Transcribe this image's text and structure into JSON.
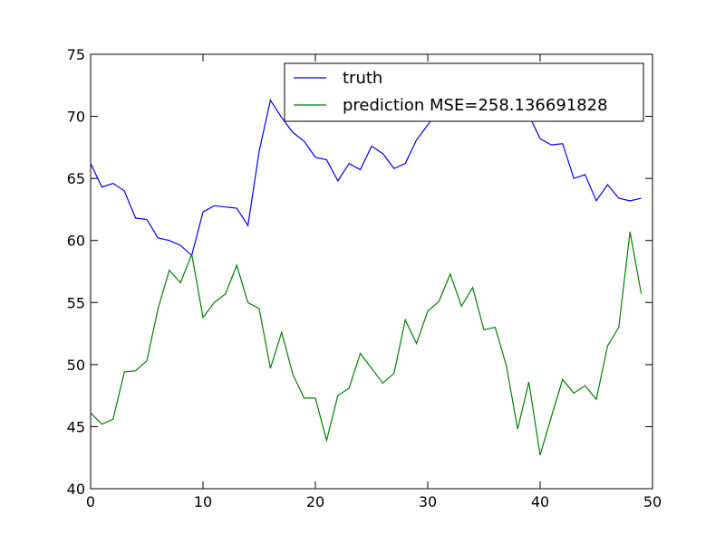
{
  "chart_data": {
    "type": "line",
    "title": "",
    "xlabel": "",
    "ylabel": "",
    "xlim": [
      0,
      50
    ],
    "ylim": [
      40,
      75
    ],
    "xticks": [
      "0",
      "10",
      "20",
      "30",
      "40",
      "50"
    ],
    "yticks": [
      "40",
      "45",
      "50",
      "55",
      "60",
      "65",
      "70",
      "75"
    ],
    "grid": false,
    "legend_position": "top-right",
    "x": [
      0,
      1,
      2,
      3,
      4,
      5,
      6,
      7,
      8,
      9,
      10,
      11,
      12,
      13,
      14,
      15,
      16,
      17,
      18,
      19,
      20,
      21,
      22,
      23,
      24,
      25,
      26,
      27,
      28,
      29,
      30,
      31,
      32,
      33,
      34,
      35,
      36,
      37,
      38,
      39,
      40,
      41,
      42,
      43,
      44,
      45,
      46,
      47,
      48,
      49
    ],
    "series": [
      {
        "name": "truth",
        "color": "#0000ff",
        "values": [
          66.2,
          64.3,
          64.6,
          64.0,
          61.8,
          61.7,
          60.2,
          60.0,
          59.6,
          58.8,
          62.3,
          62.8,
          62.7,
          62.6,
          61.2,
          67.2,
          71.3,
          69.9,
          68.7,
          68.0,
          66.7,
          66.5,
          64.8,
          66.2,
          65.7,
          67.6,
          67.0,
          65.8,
          66.2,
          68.1,
          69.3,
          70.6,
          71.2,
          71.4,
          71.3,
          71.2,
          71.1,
          71.0,
          70.7,
          70.1,
          68.2,
          67.7,
          67.8,
          65.0,
          65.3,
          63.2,
          64.5,
          63.4,
          63.2,
          63.4
        ]
      },
      {
        "name": "prediction MSE=258.136691828",
        "color": "#008000",
        "values": [
          46.1,
          45.2,
          45.6,
          49.4,
          49.5,
          50.3,
          54.5,
          57.6,
          56.6,
          58.9,
          53.8,
          55.0,
          55.7,
          58.0,
          55.0,
          54.5,
          49.7,
          52.6,
          49.2,
          47.3,
          47.3,
          43.9,
          47.5,
          48.1,
          50.9,
          49.7,
          48.5,
          49.3,
          53.6,
          51.7,
          54.3,
          55.1,
          57.3,
          54.7,
          56.2,
          52.8,
          53.0,
          49.9,
          44.8,
          48.6,
          42.7,
          45.8,
          48.8,
          47.7,
          48.3,
          47.2,
          51.5,
          53.0,
          60.7,
          55.7
        ]
      }
    ]
  }
}
